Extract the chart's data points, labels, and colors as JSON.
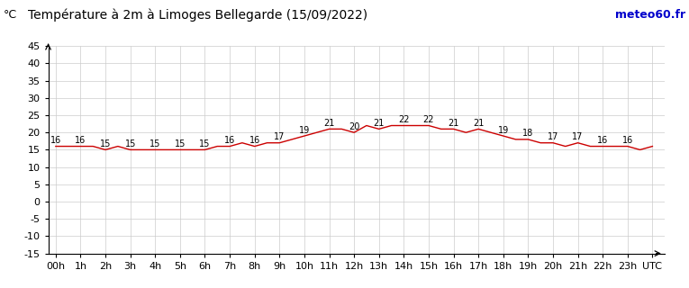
{
  "title": "Température à 2m à Limoges Bellegarde (15/09/2022)",
  "ylabel": "°C",
  "watermark": "meteo60.fr",
  "x_labels": [
    "00h",
    "1h",
    "2h",
    "3h",
    "4h",
    "5h",
    "6h",
    "7h",
    "8h",
    "9h",
    "10h",
    "11h",
    "12h",
    "13h",
    "14h",
    "15h",
    "16h",
    "17h",
    "18h",
    "19h",
    "20h",
    "21h",
    "22h",
    "23h",
    "UTC"
  ],
  "temperatures": [
    16,
    16,
    16,
    16,
    15,
    16,
    15,
    15,
    15,
    15,
    15,
    15,
    15,
    16,
    16,
    17,
    16,
    17,
    17,
    18,
    19,
    20,
    21,
    21,
    20,
    22,
    21,
    22,
    22,
    22,
    22,
    21,
    21,
    20,
    21,
    20,
    19,
    18,
    18,
    17,
    17,
    16,
    17,
    16,
    16,
    16,
    16,
    15,
    16
  ],
  "hours": [
    0,
    0.5,
    1,
    1.5,
    2,
    2.5,
    3,
    3.5,
    4,
    4.5,
    5,
    5.5,
    6,
    6.5,
    7,
    7.5,
    8,
    8.5,
    9,
    9.5,
    10,
    10.5,
    11,
    11.5,
    12,
    12.5,
    13,
    13.5,
    14,
    14.5,
    15,
    15.5,
    16,
    16.5,
    17,
    17.5,
    18,
    18.5,
    19,
    19.5,
    20,
    20.5,
    21,
    21.5,
    22,
    22.5,
    23,
    23.5,
    24
  ],
  "line_color": "#cc0000",
  "bg_color": "#ffffff",
  "grid_color": "#cccccc",
  "title_color": "#000000",
  "watermark_color": "#0000cc",
  "ylim": [
    -15,
    45
  ],
  "yticks": [
    -15,
    -10,
    -5,
    0,
    5,
    10,
    15,
    20,
    25,
    30,
    35,
    40,
    45
  ],
  "title_fontsize": 10,
  "axis_fontsize": 8,
  "label_fontsize": 7
}
